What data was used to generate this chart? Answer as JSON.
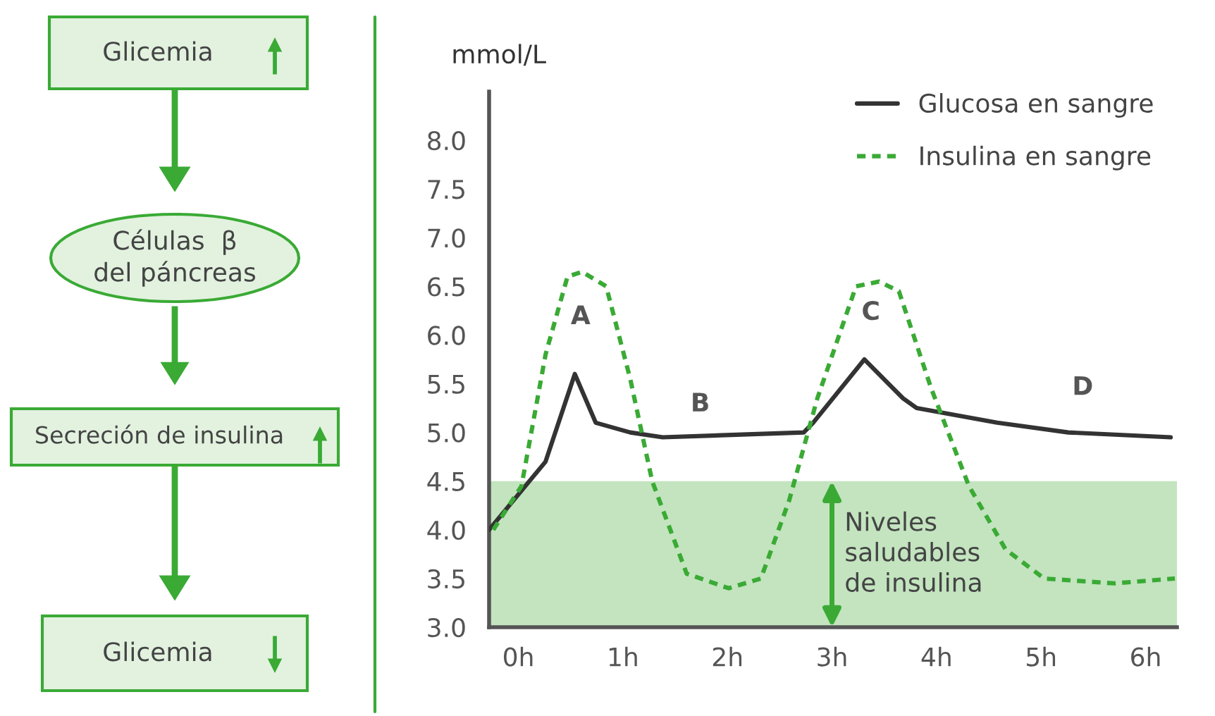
{
  "chart_data": {
    "type": "line",
    "ylabel": "mmol/L",
    "x": [
      -0.28,
      0.26,
      0.54,
      0.74,
      1.07,
      1.38,
      2.73,
      2.82,
      3.31,
      3.68,
      3.81,
      4.58,
      5.26,
      6.24
    ],
    "series": [
      {
        "name": "Glucosa en sangre",
        "color": "#333333",
        "line_style": "solid",
        "values": [
          4.0,
          4.7,
          5.6,
          5.1,
          5.0,
          4.95,
          5.0,
          5.1,
          5.75,
          5.35,
          5.25,
          5.1,
          5.0,
          4.95
        ]
      },
      {
        "name": "Insulina en sangre",
        "color": "#3aaa35",
        "line_style": "dotted",
        "x": [
          -0.24,
          0.03,
          0.26,
          0.47,
          0.61,
          0.84,
          1.07,
          1.28,
          1.61,
          2.01,
          2.32,
          2.59,
          2.86,
          3.23,
          3.45,
          3.64,
          3.95,
          4.31,
          4.66,
          5.03,
          5.7,
          6.28
        ],
        "values": [
          4.0,
          4.45,
          5.8,
          6.6,
          6.65,
          6.5,
          5.55,
          4.5,
          3.55,
          3.4,
          3.5,
          4.3,
          5.35,
          6.5,
          6.55,
          6.45,
          5.45,
          4.45,
          3.8,
          3.5,
          3.45,
          3.5
        ]
      }
    ],
    "xlim": [
      -0.28,
      6.3
    ],
    "ylim": [
      3.0,
      8.5
    ],
    "xticks": [
      {
        "value": 0,
        "label": "0h"
      },
      {
        "value": 1,
        "label": "1h"
      },
      {
        "value": 2,
        "label": "2h"
      },
      {
        "value": 3,
        "label": "3h"
      },
      {
        "value": 4,
        "label": "4h"
      },
      {
        "value": 5,
        "label": "5h"
      },
      {
        "value": 6,
        "label": "6h"
      }
    ],
    "yticks": [
      {
        "value": 3.0,
        "label": "3.0"
      },
      {
        "value": 3.5,
        "label": "3.5"
      },
      {
        "value": 4.0,
        "label": "4.0"
      },
      {
        "value": 4.5,
        "label": "4.5"
      },
      {
        "value": 5.0,
        "label": "5.0"
      },
      {
        "value": 5.5,
        "label": "5.5"
      },
      {
        "value": 6.0,
        "label": "6.0"
      },
      {
        "value": 6.5,
        "label": "6.5"
      },
      {
        "value": 7.0,
        "label": "7.0"
      },
      {
        "value": 7.5,
        "label": "7.5"
      },
      {
        "value": 8.0,
        "label": "8.0"
      }
    ],
    "bands": [
      {
        "axis": "y",
        "from": 3.0,
        "to": 4.5,
        "label": "Niveles\nsaludables\nde insulina",
        "color": "#c3e4bf"
      }
    ],
    "annotations": [
      "Glicemia",
      "Células  β\ndel páncreas",
      "Secreción de insulina",
      "Glicemia",
      "A",
      "B",
      "C",
      "D"
    ],
    "legend": "top right",
    "grid": false
  }
}
